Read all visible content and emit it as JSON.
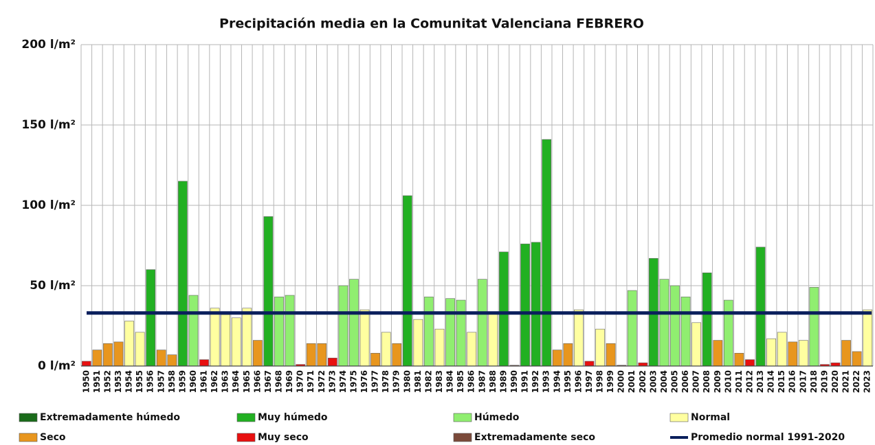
{
  "chart_data": {
    "type": "bar",
    "title": "Precipitación media en la Comunitat Valenciana FEBRERO",
    "categories": [
      "1950",
      "1951",
      "1952",
      "1953",
      "1954",
      "1955",
      "1956",
      "1957",
      "1958",
      "1959",
      "1960",
      "1961",
      "1962",
      "1963",
      "1964",
      "1965",
      "1966",
      "1967",
      "1968",
      "1969",
      "1970",
      "1971",
      "1972",
      "1973",
      "1974",
      "1975",
      "1976",
      "1977",
      "1978",
      "1979",
      "1980",
      "1981",
      "1982",
      "1983",
      "1984",
      "1985",
      "1986",
      "1987",
      "1988",
      "1989",
      "1990",
      "1991",
      "1992",
      "1993",
      "1994",
      "1995",
      "1996",
      "1997",
      "1998",
      "1999",
      "2000",
      "2001",
      "2002",
      "2003",
      "2004",
      "2005",
      "2006",
      "2007",
      "2008",
      "2009",
      "2010",
      "2011",
      "2012",
      "2013",
      "2014",
      "2015",
      "2016",
      "2017",
      "2018",
      "2019",
      "2020",
      "2021",
      "2022",
      "2023"
    ],
    "values": [
      3,
      10,
      14,
      15,
      28,
      21,
      60,
      10,
      7,
      115,
      44,
      4,
      36,
      32,
      30,
      36,
      16,
      93,
      43,
      44,
      1,
      14,
      14,
      5,
      50,
      54,
      35,
      8,
      21,
      14,
      106,
      29,
      43,
      23,
      42,
      41,
      21,
      54,
      33,
      71,
      0.5,
      76,
      77,
      141,
      10,
      14,
      35,
      3,
      23,
      14,
      0.5,
      47,
      2,
      67,
      54,
      50,
      43,
      27,
      58,
      16,
      41,
      8,
      4,
      74,
      17,
      21,
      15,
      16,
      49,
      1,
      2,
      16,
      9,
      35
    ],
    "colors": [
      "#e81010",
      "#e8961e",
      "#e8961e",
      "#e8961e",
      "#ffffa0",
      "#ffffa0",
      "#22b022",
      "#e8961e",
      "#e8961e",
      "#22b022",
      "#90ee70",
      "#e81010",
      "#ffffa0",
      "#ffffa0",
      "#ffffa0",
      "#ffffa0",
      "#e8961e",
      "#22b022",
      "#90ee70",
      "#90ee70",
      "#e81010",
      "#e8961e",
      "#e8961e",
      "#e81010",
      "#90ee70",
      "#90ee70",
      "#ffffa0",
      "#e8961e",
      "#ffffa0",
      "#e8961e",
      "#22b022",
      "#ffffa0",
      "#90ee70",
      "#ffffa0",
      "#90ee70",
      "#90ee70",
      "#ffffa0",
      "#90ee70",
      "#ffffa0",
      "#22b022",
      "#7b4a3a",
      "#22b022",
      "#22b022",
      "#22b022",
      "#e8961e",
      "#e8961e",
      "#ffffa0",
      "#e81010",
      "#ffffa0",
      "#e8961e",
      "#7b4a3a",
      "#90ee70",
      "#e81010",
      "#22b022",
      "#90ee70",
      "#90ee70",
      "#90ee70",
      "#ffffa0",
      "#22b022",
      "#e8961e",
      "#90ee70",
      "#e8961e",
      "#e81010",
      "#22b022",
      "#ffffa0",
      "#ffffa0",
      "#e8961e",
      "#ffffa0",
      "#90ee70",
      "#e81010",
      "#e81010",
      "#e8961e",
      "#e8961e",
      "#ffffa0"
    ],
    "legend": [
      {
        "name": "Extremadamente húmedo",
        "color": "#1a6b1a"
      },
      {
        "name": "Muy húmedo",
        "color": "#22b022"
      },
      {
        "name": "Húmedo",
        "color": "#90ee70"
      },
      {
        "name": "Normal",
        "color": "#ffffa0"
      },
      {
        "name": "Seco",
        "color": "#e8961e"
      },
      {
        "name": "Muy seco",
        "color": "#e81010"
      },
      {
        "name": "Extremadamente seco",
        "color": "#7b4a3a"
      }
    ],
    "reference_line": {
      "name": "Promedio normal 1991-2020",
      "value": 33,
      "color": "#0a1f5c"
    },
    "ylim": [
      0,
      200
    ],
    "yticks": [
      {
        "value": 0,
        "label": "0 l/m²"
      },
      {
        "value": 50,
        "label": "50 l/m²"
      },
      {
        "value": 100,
        "label": "100 l/m²"
      },
      {
        "value": 150,
        "label": "150 l/m²"
      },
      {
        "value": 200,
        "label": "200 l/m²"
      }
    ],
    "grid": true
  }
}
